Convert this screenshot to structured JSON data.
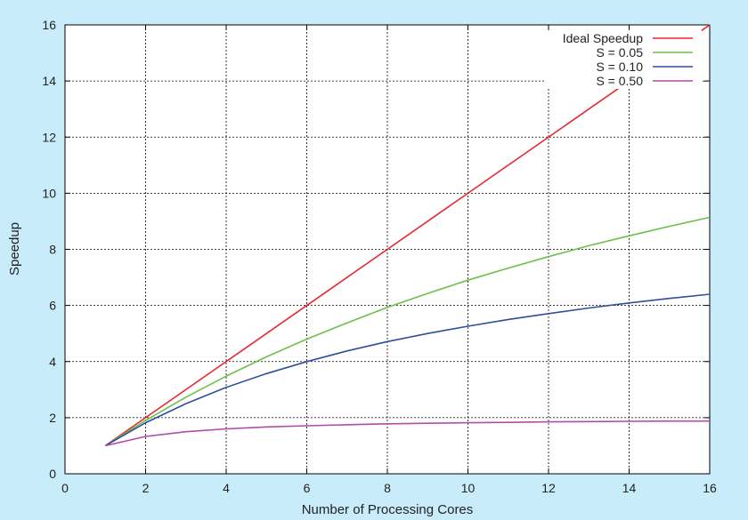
{
  "chart_data": {
    "type": "line",
    "title": "",
    "xlabel": "Number of Processing Cores",
    "ylabel": "Speedup",
    "xlim": [
      0,
      16
    ],
    "ylim": [
      0,
      16
    ],
    "xticks": [
      "0",
      "2",
      "4",
      "6",
      "8",
      "10",
      "12",
      "14",
      "16"
    ],
    "yticks": [
      "0",
      "2",
      "4",
      "6",
      "8",
      "10",
      "12",
      "14",
      "16"
    ],
    "grid": true,
    "legend_position": "top-right",
    "series": [
      {
        "name": "Ideal Speedup",
        "color": "#e8262b",
        "x": [
          1,
          16
        ],
        "y": [
          1,
          16
        ]
      },
      {
        "name": "S = 0.05",
        "color": "#6cc04a",
        "x": [
          1,
          2,
          3,
          4,
          5,
          6,
          7,
          8,
          9,
          10,
          11,
          12,
          13,
          14,
          15,
          16
        ],
        "y": [
          1.0,
          1.9,
          2.73,
          3.48,
          4.17,
          4.8,
          5.38,
          5.93,
          6.43,
          6.9,
          7.33,
          7.74,
          8.13,
          8.48,
          8.82,
          9.14
        ]
      },
      {
        "name": "S = 0.10",
        "color": "#2f4f9a",
        "x": [
          1,
          2,
          3,
          4,
          5,
          6,
          7,
          8,
          9,
          10,
          11,
          12,
          13,
          14,
          15,
          16
        ],
        "y": [
          1.0,
          1.82,
          2.5,
          3.08,
          3.57,
          4.0,
          4.38,
          4.71,
          5.0,
          5.26,
          5.5,
          5.71,
          5.91,
          6.09,
          6.25,
          6.4
        ]
      },
      {
        "name": "S = 0.50",
        "color": "#b04aa5",
        "x": [
          1,
          2,
          3,
          4,
          5,
          6,
          7,
          8,
          9,
          10,
          11,
          12,
          13,
          14,
          15,
          16
        ],
        "y": [
          1.0,
          1.33,
          1.5,
          1.6,
          1.67,
          1.71,
          1.75,
          1.78,
          1.8,
          1.82,
          1.83,
          1.85,
          1.86,
          1.87,
          1.88,
          1.88
        ]
      }
    ]
  }
}
